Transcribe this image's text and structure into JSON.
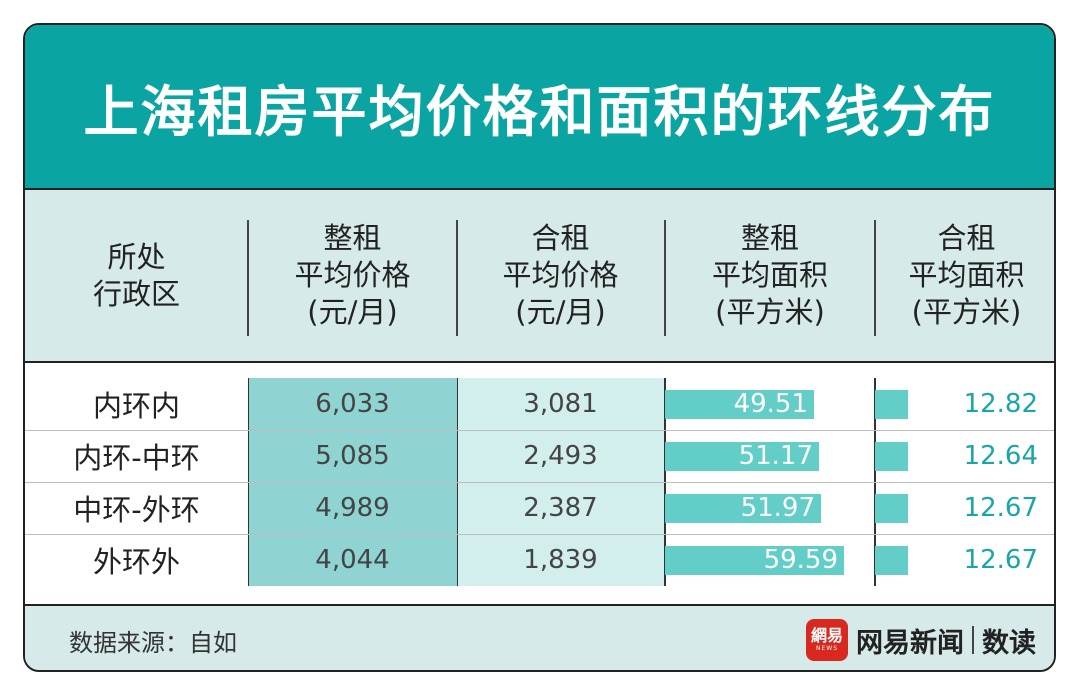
{
  "title": "上海租房平均价格和面积的环线分布",
  "headers": {
    "region": "所处\n行政区",
    "whole_price": "整租\n平均价格\n(元/月)",
    "shared_price": "合租\n平均价格\n(元/月)",
    "whole_area": "整租\n平均面积\n(平方米)",
    "shared_area": "合租\n平均面积\n(平方米)"
  },
  "chart_data": {
    "type": "table",
    "categories": [
      "内环内",
      "内环-中环",
      "中环-外环",
      "外环外"
    ],
    "columns": [
      "整租平均价格(元/月)",
      "合租平均价格(元/月)",
      "整租平均面积(平方米)",
      "合租平均面积(平方米)"
    ],
    "rows": [
      {
        "region": "内环内",
        "whole_price": "6,033",
        "shared_price": "3,081",
        "whole_area": "49.51",
        "shared_area": "12.82"
      },
      {
        "region": "内环-中环",
        "whole_price": "5,085",
        "shared_price": "2,493",
        "whole_area": "51.17",
        "shared_area": "12.64"
      },
      {
        "region": "中环-外环",
        "whole_price": "4,989",
        "shared_price": "2,387",
        "whole_area": "51.97",
        "shared_area": "12.67"
      },
      {
        "region": "外环外",
        "whole_price": "4,044",
        "shared_price": "1,839",
        "whole_area": "59.59",
        "shared_area": "12.67"
      }
    ]
  },
  "footer": {
    "source": "数据来源：自如",
    "logo_text": "網易",
    "logo_sub": "NEWS",
    "brand": "网易新闻",
    "brand_sub": "数读"
  },
  "colors": {
    "title_bg": "#0aa4a2",
    "header_bg": "#d6eaea",
    "price_col_dark": "#8fd4d2",
    "price_col_light": "#d2eeed",
    "bar": "#63cdc7",
    "value_teal": "#1aa6a6",
    "logo_red": "#d8281f"
  }
}
